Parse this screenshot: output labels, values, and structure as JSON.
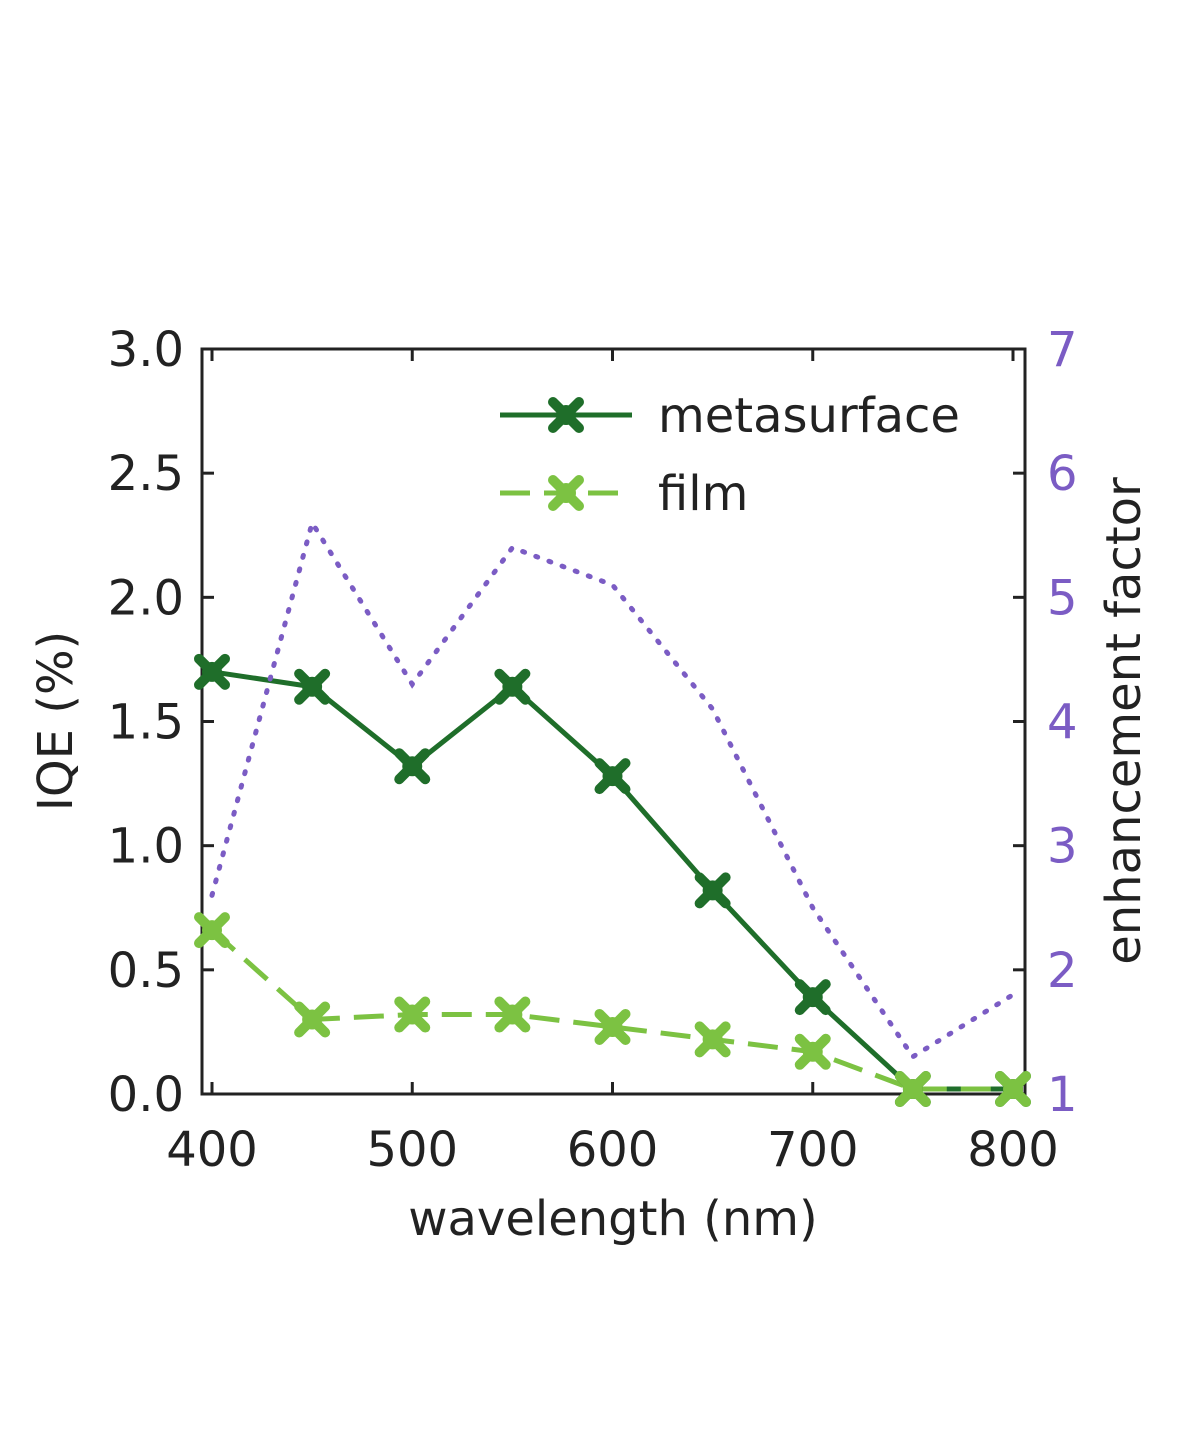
{
  "chart_data": {
    "type": "line",
    "xlabel": "wavelength (nm)",
    "ylabel": "IQE (%)",
    "y2label": "enhancement factor",
    "xlim": [
      400,
      800
    ],
    "ylim": [
      0.0,
      3.0
    ],
    "y2lim": [
      1,
      7
    ],
    "x_ticks": [
      "400",
      "500",
      "600",
      "700",
      "800"
    ],
    "y_ticks": [
      "0.0",
      "0.5",
      "1.0",
      "1.5",
      "2.0",
      "2.5",
      "3.0"
    ],
    "y2_ticks": [
      "1",
      "2",
      "3",
      "4",
      "5",
      "6",
      "7"
    ],
    "legend_position": "top-right",
    "grid": false,
    "x": [
      400,
      450,
      500,
      550,
      600,
      650,
      700,
      750,
      800
    ],
    "series": [
      {
        "name": "metasurface",
        "axis": "left",
        "color": "#1f6e2a",
        "style": "solid",
        "marker": "x",
        "values": [
          1.7,
          1.64,
          1.32,
          1.64,
          1.28,
          0.82,
          0.39,
          0.02,
          0.02
        ]
      },
      {
        "name": "film",
        "axis": "left",
        "color": "#7cc242",
        "style": "dashed",
        "marker": "x",
        "values": [
          0.66,
          0.3,
          0.32,
          0.32,
          0.27,
          0.22,
          0.17,
          0.02,
          0.02
        ]
      },
      {
        "axis": "right",
        "color": "#7b5cc4",
        "style": "dotted",
        "marker": "none",
        "x": [
          400,
          450,
          500,
          550,
          600,
          650,
          700,
          750,
          800
        ],
        "values": [
          2.6,
          5.6,
          4.3,
          5.4,
          5.1,
          4.1,
          2.5,
          1.3,
          1.8
        ]
      }
    ]
  }
}
